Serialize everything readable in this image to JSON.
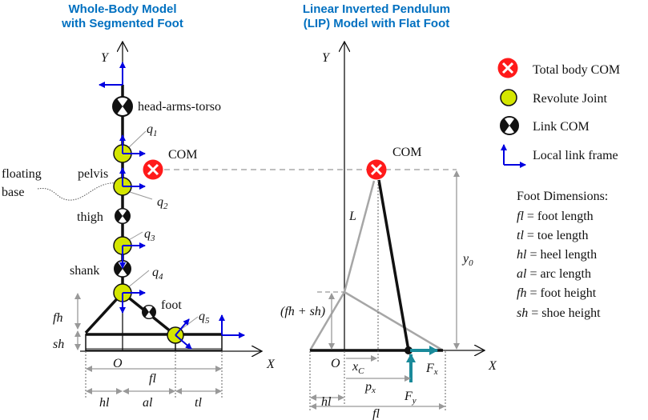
{
  "titles": {
    "left": [
      "Whole-Body Model",
      "with Segmented Foot"
    ],
    "right": [
      "Linear Inverted Pendulum",
      "(LIP) Model with Flat Foot"
    ]
  },
  "left_model": {
    "axis_y": "Y",
    "axis_x": "X",
    "origin": "O",
    "links": {
      "hat": "head-arms-torso",
      "pelvis": "pelvis",
      "thigh": "thigh",
      "shank": "shank",
      "foot": "foot"
    },
    "com_label": "COM",
    "floating_base": [
      "floating",
      "base"
    ],
    "joints": [
      {
        "base": "q",
        "sub": "1"
      },
      {
        "base": "q",
        "sub": "2"
      },
      {
        "base": "q",
        "sub": "3"
      },
      {
        "base": "q",
        "sub": "4"
      },
      {
        "base": "q",
        "sub": "5"
      }
    ],
    "dims": {
      "fh": "fh",
      "sh": "sh",
      "fl": "fl",
      "hl": "hl",
      "al": "al",
      "tl": "tl"
    }
  },
  "right_model": {
    "axis_y": "Y",
    "axis_x": "X",
    "origin": "O",
    "com_label": "COM",
    "L": "L",
    "y0": {
      "base": "y",
      "sub": "0"
    },
    "fh_sh": "(fh + sh)",
    "xc": {
      "base": "x",
      "sub": "C"
    },
    "px": {
      "base": "p",
      "sub": "x"
    },
    "fx": {
      "base": "F",
      "sub": "x"
    },
    "fy": {
      "base": "F",
      "sub": "y"
    },
    "hl": "hl",
    "fl": "fl"
  },
  "legend": {
    "items": [
      "Total body COM",
      "Revolute Joint",
      "Link COM",
      "Local link frame"
    ],
    "foot_dims_title": "Foot Dimensions:",
    "foot_dims": [
      {
        "sym": "fl",
        "desc": " = foot length"
      },
      {
        "sym": "tl",
        "desc": " = toe length"
      },
      {
        "sym": "hl",
        "desc": " = heel length"
      },
      {
        "sym": "al",
        "desc": " = arc length"
      },
      {
        "sym": "fh",
        "desc": " = foot height"
      },
      {
        "sym": "sh",
        "desc": " = shoe height"
      }
    ]
  },
  "colors": {
    "title": "#0070c0",
    "total_com": "#ff1a1a",
    "joint": "#d4e600",
    "frame": "#0000e0",
    "force": "#1a8a9a",
    "lip_gray": "#a6a6a6"
  }
}
